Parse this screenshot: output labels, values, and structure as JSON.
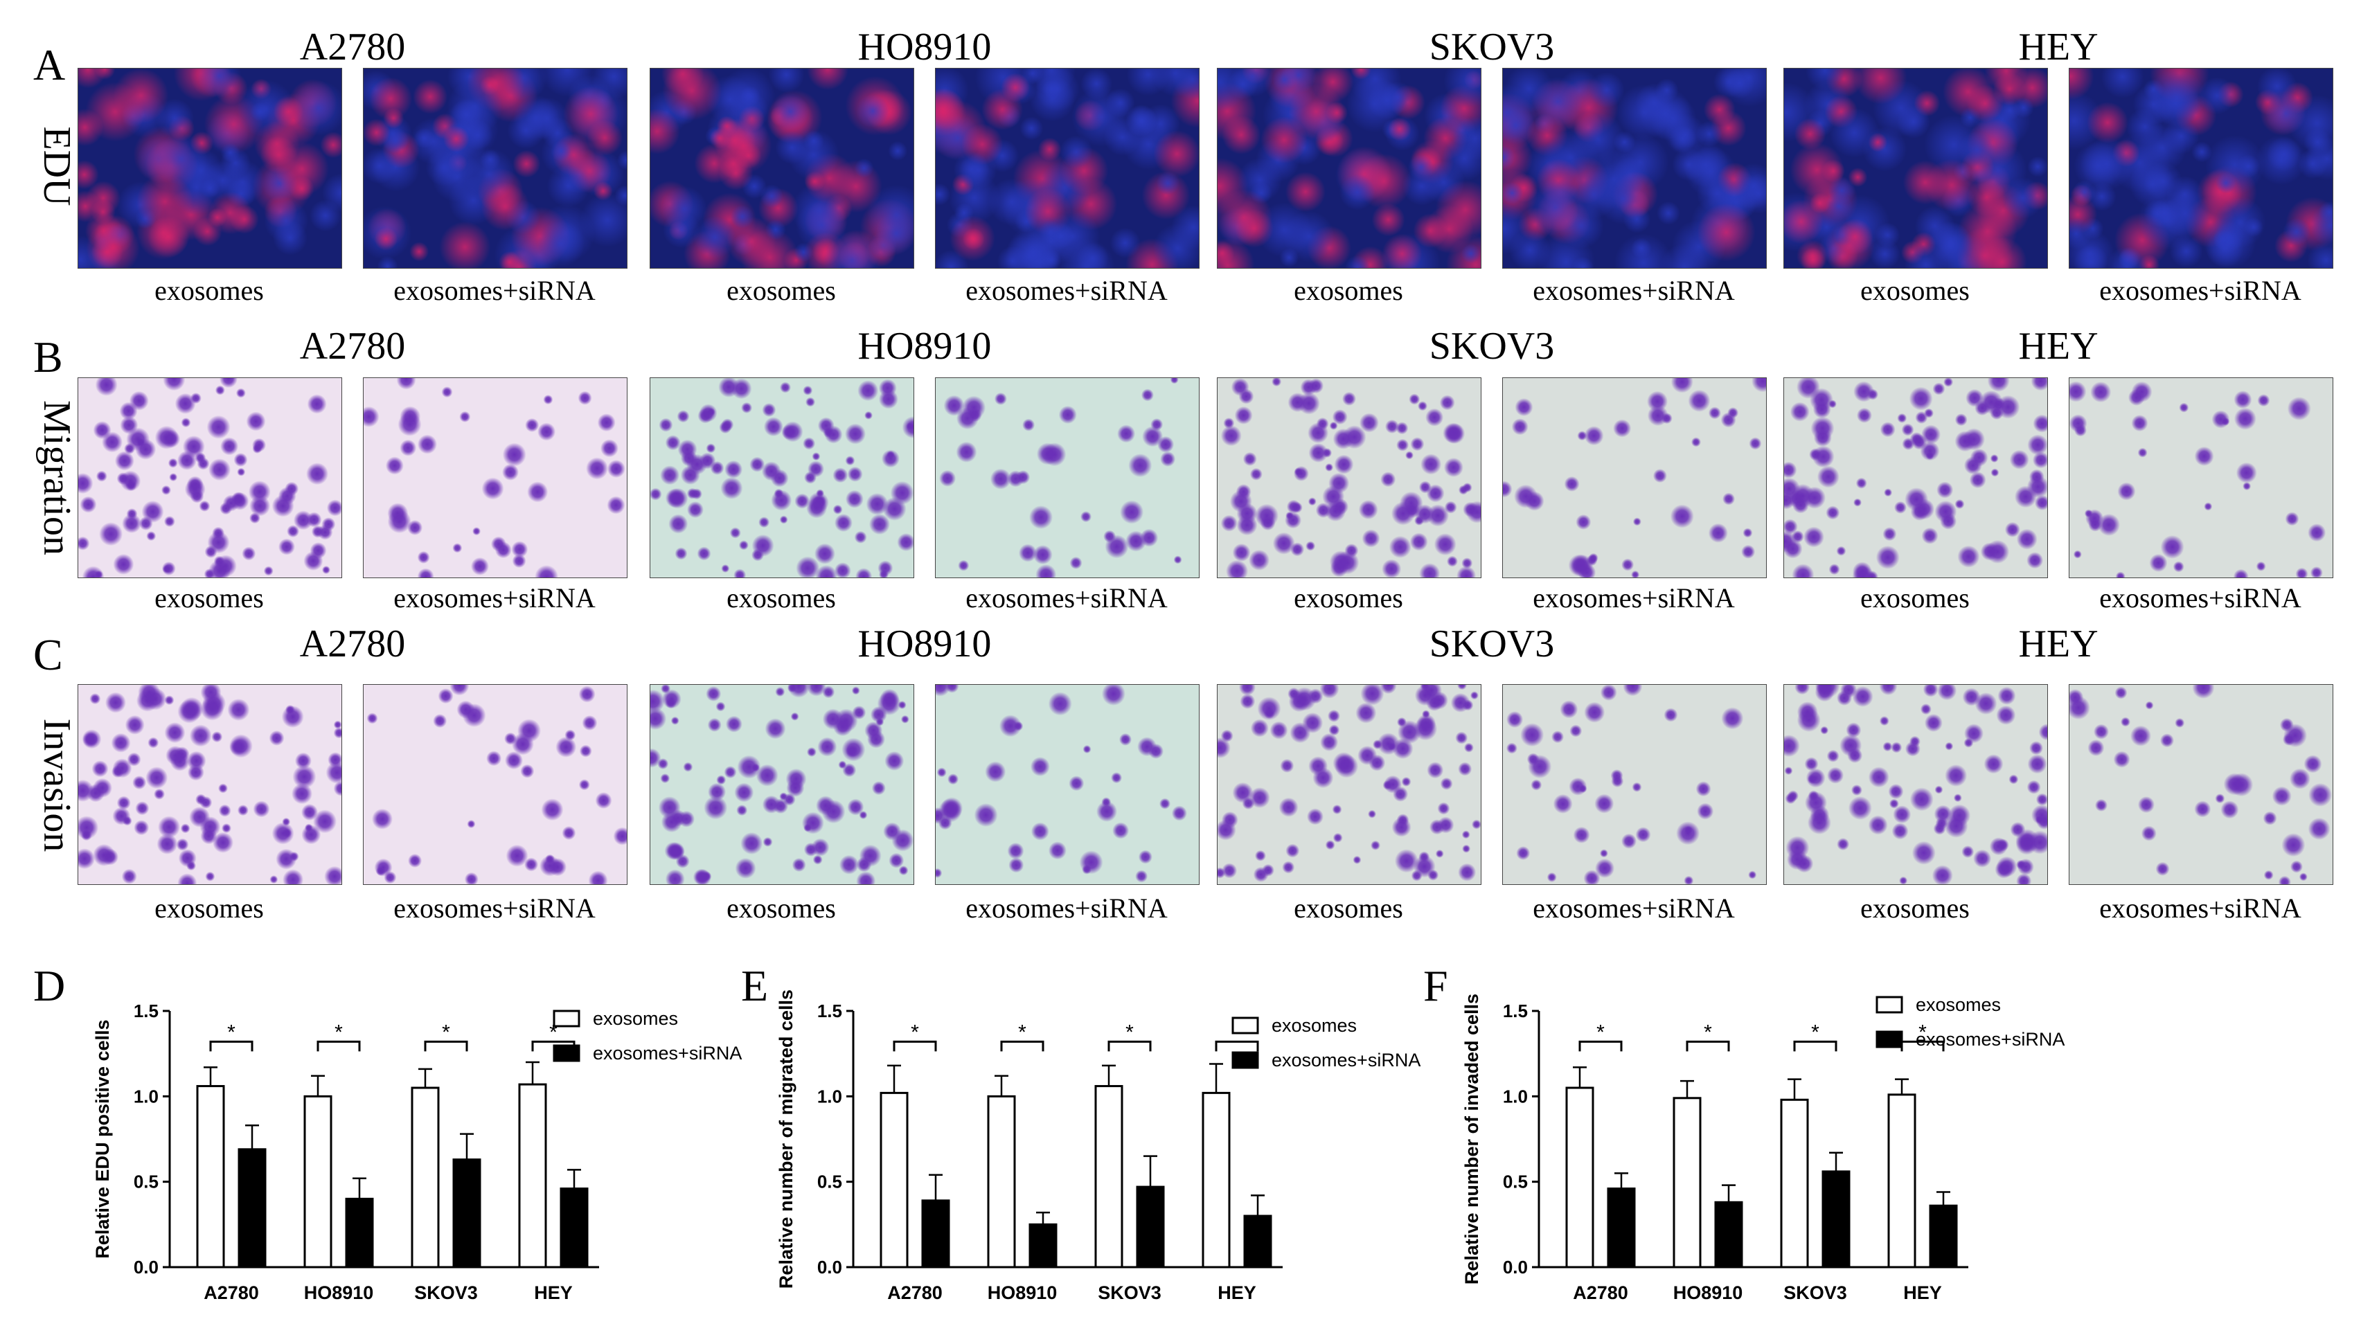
{
  "panels": {
    "A": {
      "letter": "A",
      "row_label": "EDU"
    },
    "B": {
      "letter": "B",
      "row_label": "Migration"
    },
    "C": {
      "letter": "C",
      "row_label": "Invasion"
    },
    "D": {
      "letter": "D"
    },
    "E": {
      "letter": "E"
    },
    "F": {
      "letter": "F"
    }
  },
  "cell_lines": [
    "A2780",
    "HO8910",
    "SKOV3",
    "HEY"
  ],
  "condition_labels": [
    "exosomes",
    "exosomes+siRNA"
  ],
  "colors": {
    "edu_nuclei": "#2b3cc4",
    "edu_positive": "#e0246a",
    "crystal_violet": "#6a2fb8",
    "bar_outline": "#000000",
    "bar_siRNA": "#000000"
  },
  "chart_data": [
    {
      "type": "bar",
      "panel": "D",
      "ylabel": "Relative EDU positive cells",
      "categories": [
        "A2780",
        "HO8910",
        "SKOV3",
        "HEY"
      ],
      "ylim": [
        0.0,
        1.5
      ],
      "yticks": [
        "0.0",
        "0.5",
        "1.0",
        "1.5"
      ],
      "legend_position": "top-right",
      "significance": [
        "*",
        "*",
        "*",
        "*"
      ],
      "series": [
        {
          "name": "exosomes",
          "values": [
            1.06,
            1.0,
            1.05,
            1.07
          ],
          "errors": [
            0.11,
            0.12,
            0.11,
            0.13
          ],
          "fill": "white"
        },
        {
          "name": "exosomes+siRNA",
          "values": [
            0.69,
            0.4,
            0.63,
            0.46
          ],
          "errors": [
            0.14,
            0.12,
            0.15,
            0.11
          ],
          "fill": "black"
        }
      ]
    },
    {
      "type": "bar",
      "panel": "E",
      "ylabel": "Relative number of migrated cells",
      "categories": [
        "A2780",
        "HO8910",
        "SKOV3",
        "HEY"
      ],
      "ylim": [
        0.0,
        1.5
      ],
      "yticks": [
        "0.0",
        "0.5",
        "1.0",
        "1.5"
      ],
      "legend_position": "top-right",
      "significance": [
        "*",
        "*",
        "*",
        "*"
      ],
      "series": [
        {
          "name": "exosomes",
          "values": [
            1.02,
            1.0,
            1.06,
            1.02
          ],
          "errors": [
            0.16,
            0.12,
            0.12,
            0.17
          ],
          "fill": "white"
        },
        {
          "name": "exosomes+siRNA",
          "values": [
            0.39,
            0.25,
            0.47,
            0.3
          ],
          "errors": [
            0.15,
            0.07,
            0.18,
            0.12
          ],
          "fill": "black"
        }
      ]
    },
    {
      "type": "bar",
      "panel": "F",
      "ylabel": "Relative number of invaded cells",
      "categories": [
        "A2780",
        "HO8910",
        "SKOV3",
        "HEY"
      ],
      "ylim": [
        0.0,
        1.5
      ],
      "yticks": [
        "0.0",
        "0.5",
        "1.0",
        "1.5"
      ],
      "legend_position": "top-right",
      "significance": [
        "*",
        "*",
        "*",
        "*"
      ],
      "series": [
        {
          "name": "exosomes",
          "values": [
            1.05,
            0.99,
            0.98,
            1.01
          ],
          "errors": [
            0.12,
            0.1,
            0.12,
            0.09
          ],
          "fill": "white"
        },
        {
          "name": "exosomes+siRNA",
          "values": [
            0.46,
            0.38,
            0.56,
            0.36
          ],
          "errors": [
            0.09,
            0.1,
            0.11,
            0.08
          ],
          "fill": "black"
        }
      ]
    }
  ]
}
